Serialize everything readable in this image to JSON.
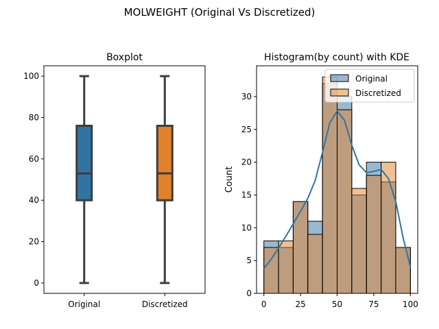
{
  "figure_title": "MOLWEIGHT (Original Vs Discretized)",
  "chart_data": [
    {
      "type": "box",
      "title": "Boxplot",
      "xlabel": "",
      "ylabel": "",
      "categories": [
        "Original",
        "Discretized"
      ],
      "colors": [
        "#3274a1",
        "#e1812c"
      ],
      "boxes": [
        {
          "name": "Original",
          "min": 0,
          "q1": 40,
          "median": 53,
          "q3": 76,
          "max": 100
        },
        {
          "name": "Discretized",
          "min": 0,
          "q1": 40,
          "median": 53,
          "q3": 76,
          "max": 100
        }
      ],
      "yticks": [
        0,
        20,
        40,
        60,
        80,
        100
      ],
      "ylim": [
        -5,
        105
      ],
      "grid": false
    },
    {
      "type": "histogram",
      "title": "Histogram(by count) with KDE",
      "xlabel": "",
      "ylabel": "Count",
      "xlim": [
        -5,
        105
      ],
      "ylim": [
        0,
        34.7
      ],
      "xticks": [
        0,
        25,
        50,
        75,
        100
      ],
      "yticks": [
        0,
        5,
        10,
        15,
        20,
        25,
        30
      ],
      "bin_edges": [
        0,
        10,
        20,
        30,
        40,
        50,
        60,
        70,
        80,
        90,
        100
      ],
      "series": [
        {
          "name": "Original",
          "color": "#3274a1",
          "counts": [
            8,
            7,
            14,
            11,
            32,
            30,
            15,
            20,
            17,
            7
          ]
        },
        {
          "name": "Discretized",
          "color": "#e1812c",
          "counts": [
            7,
            8,
            14,
            9,
            33,
            28,
            16,
            18,
            20,
            7
          ]
        }
      ],
      "kde": {
        "color": "#3274a1",
        "x": [
          0,
          5,
          10,
          15,
          20,
          25,
          30,
          35,
          40,
          45,
          50,
          55,
          60,
          65,
          70,
          75,
          80,
          85,
          90,
          95,
          100
        ],
        "y": [
          3.8,
          5.2,
          6.9,
          8.7,
          10.6,
          12.5,
          14.5,
          17.2,
          21.5,
          26.0,
          27.8,
          26.4,
          22.6,
          19.6,
          18.4,
          18.6,
          18.9,
          17.5,
          14.0,
          8.5,
          4.0
        ]
      },
      "legend": {
        "position": "top-right",
        "entries": [
          "Original",
          "Discretized"
        ]
      },
      "grid": false
    }
  ]
}
